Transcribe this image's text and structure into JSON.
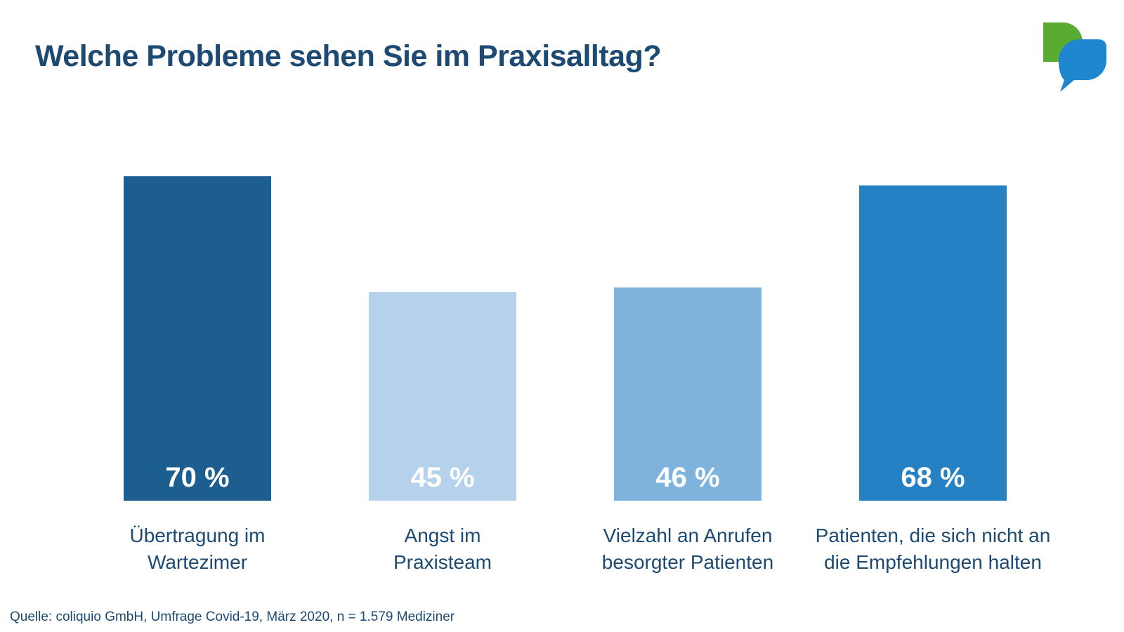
{
  "header": {
    "title": "Welche Probleme sehen Sie im Praxisalltag?"
  },
  "logo": {
    "icon": "speech-bubbles-icon",
    "colors": [
      "#5aab32",
      "#1f86d0"
    ]
  },
  "chart_data": {
    "type": "bar",
    "title": "Welche Probleme sehen Sie im Praxisalltag?",
    "xlabel": "",
    "ylabel": "",
    "ylim": [
      0,
      100
    ],
    "unit": "%",
    "grid": false,
    "categories": [
      [
        "Übertragung im",
        "Wartezimer"
      ],
      [
        "Angst im",
        "Praxisteam"
      ],
      [
        "Vielzahl an Anrufen",
        "besorgter Patienten"
      ],
      [
        "Patienten, die sich nicht an",
        "die Empfehlungen halten"
      ]
    ],
    "values": [
      70,
      45,
      46,
      68
    ],
    "value_labels": [
      "70 %",
      "45 %",
      "46 %",
      "68 %"
    ],
    "colors": [
      "#1c5e8f",
      "#b6d1ec",
      "#7db3dd",
      "#2680c4"
    ]
  },
  "footer": {
    "source": "Quelle: coliquio GmbH, Umfrage Covid-19, März 2020, n = 1.579 Mediziner"
  }
}
